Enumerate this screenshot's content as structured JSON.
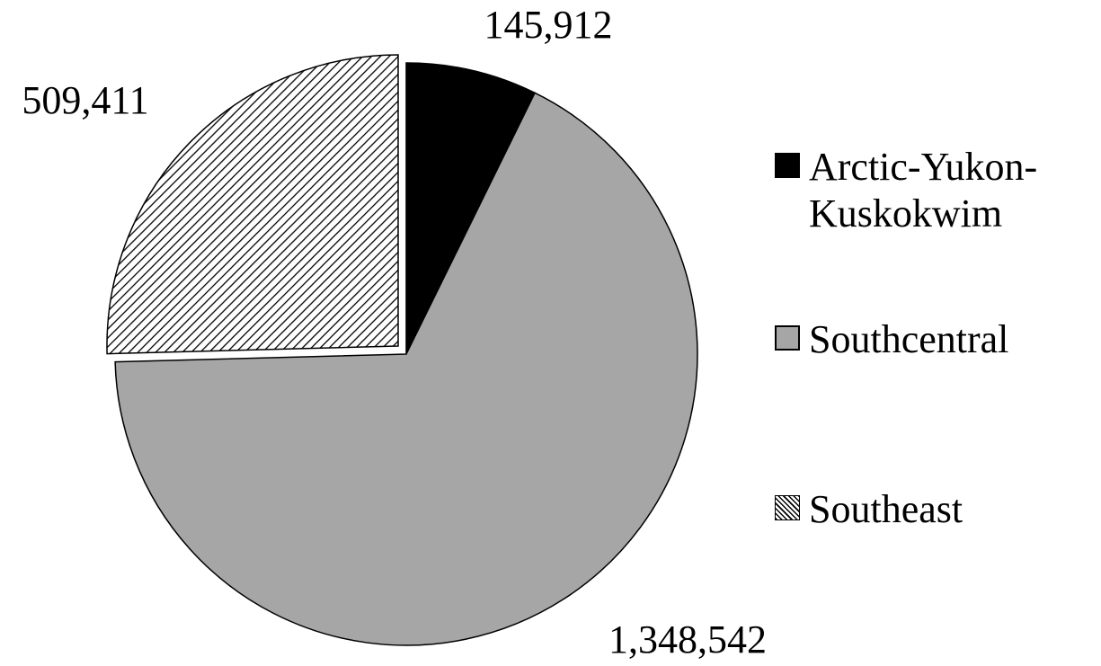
{
  "chart_data": {
    "type": "pie",
    "categories": [
      "Arctic-Yukon-Kuskokwim",
      "Southcentral",
      "Southeast"
    ],
    "values": [
      145912,
      1348542,
      509411
    ],
    "value_labels": [
      "145,912",
      "1,348,542",
      "509,411"
    ],
    "colors": [
      "#000000",
      "#a6a6a6",
      "diagonal-hatch"
    ],
    "legend": "right"
  }
}
